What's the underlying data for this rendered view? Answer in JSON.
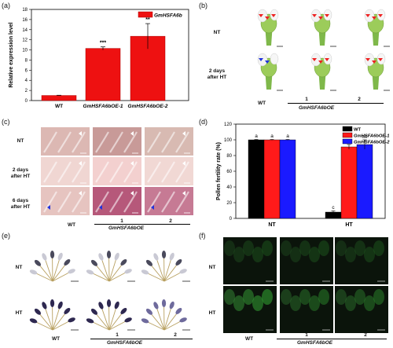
{
  "panels": {
    "a": "(a)",
    "b": "(b)",
    "c": "(c)",
    "d": "(d)",
    "e": "(e)",
    "f": "(f)"
  },
  "gene_name": "GmHSFA6bOE",
  "conditions": {
    "nt": "NT",
    "ht": "HT",
    "two_days": "2 days after HT",
    "six_days": "6 days after HT"
  },
  "lines": {
    "wt": "WT",
    "l1": "1",
    "l2": "2"
  },
  "colors": {
    "wt": "#000000",
    "oe1": "#ff1a1a",
    "oe2": "#1a1aff",
    "bar_a": "#ee1111"
  },
  "chart_data": [
    {
      "type": "bar",
      "panel": "a",
      "legend": [
        "GmHSFA6b"
      ],
      "categories": [
        "WT",
        "GmHSFA6bOE-1",
        "GmHSFA6bOE-2"
      ],
      "values": [
        1.0,
        10.3,
        12.7
      ],
      "errors": [
        0.05,
        0.3,
        2.5
      ],
      "annotations": [
        "",
        "***",
        "**"
      ],
      "ylabel": "Relative expression level",
      "ylim": [
        0,
        18
      ],
      "yticks": [
        "0",
        "2",
        "4",
        "6",
        "8",
        "10",
        "12",
        "14",
        "16",
        "18"
      ]
    },
    {
      "type": "bar",
      "panel": "d",
      "groups": [
        "NT",
        "HT"
      ],
      "series": [
        {
          "name": "WT",
          "values": [
            100,
            8
          ],
          "errors": [
            0.5,
            1.5
          ],
          "letters": [
            "a",
            "c"
          ]
        },
        {
          "name": "GmHSFA6bOE-1",
          "values": [
            100,
            91
          ],
          "errors": [
            0.5,
            3
          ],
          "letters": [
            "a",
            "b"
          ]
        },
        {
          "name": "GmHSFA6bOE-2",
          "values": [
            100,
            94
          ],
          "errors": [
            0.5,
            6
          ],
          "letters": [
            "a",
            "ab"
          ]
        }
      ],
      "ylabel": "Pollen fertility rate (%)",
      "ylim": [
        0,
        120
      ],
      "yticks": [
        "0",
        "20",
        "40",
        "60",
        "80",
        "100",
        "120"
      ]
    }
  ]
}
